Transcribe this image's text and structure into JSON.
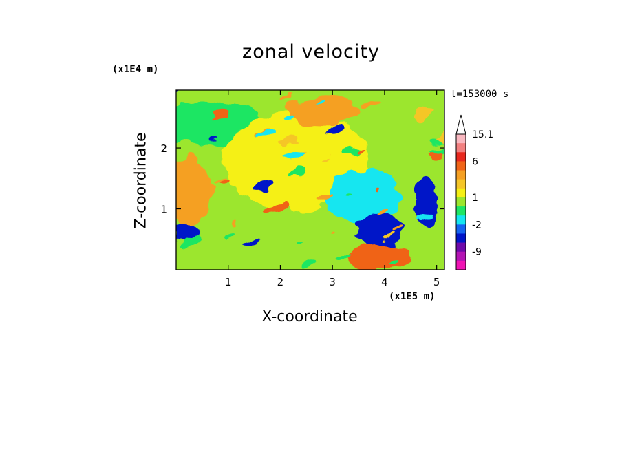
{
  "chart_data": {
    "type": "heatmap",
    "title": "zonal velocity",
    "xlabel": "X-coordinate",
    "ylabel": "Z-coordinate",
    "x_unit_label": "(x1E5 m)",
    "y_unit_label": "(x1E4 m)",
    "time_label": "t=153000 s",
    "xlim": [
      0,
      5.15
    ],
    "ylim": [
      0,
      2.95
    ],
    "x_ticks": [
      "1",
      "2",
      "3",
      "4",
      "5"
    ],
    "y_ticks": [
      "1",
      "2"
    ],
    "x_tick_values": [
      1,
      2,
      3,
      4,
      5
    ],
    "y_tick_values": [
      1,
      2
    ],
    "colorbar": {
      "labels": [
        "15.1",
        "6",
        "1",
        "-2",
        "-9"
      ],
      "label_values": [
        15.1,
        6,
        1,
        -2,
        -9
      ],
      "max_arrow": true,
      "levels": [
        {
          "color": "#f9b8c0"
        },
        {
          "color": "#f28080"
        },
        {
          "color": "#e8281e"
        },
        {
          "color": "#f06418"
        },
        {
          "color": "#f5a023"
        },
        {
          "color": "#f5c628"
        },
        {
          "color": "#f5f014"
        },
        {
          "color": "#9ce62d"
        },
        {
          "color": "#1ee664"
        },
        {
          "color": "#14e6f0"
        },
        {
          "color": "#1464f0"
        },
        {
          "color": "#0014c8"
        },
        {
          "color": "#6e0aaa"
        },
        {
          "color": "#b414b4"
        },
        {
          "color": "#f014b4"
        }
      ]
    },
    "features": [
      {
        "label": "background",
        "value": 0.5
      },
      {
        "label": "upper-left green band",
        "x": 0.6,
        "z": 2.4,
        "value": -1
      },
      {
        "label": "left orange shear",
        "x": 0.25,
        "z": 1.3,
        "value": 3.5
      },
      {
        "label": "central yellow",
        "x": 2.3,
        "z": 1.8,
        "value": 1.5
      },
      {
        "label": "upper orange",
        "x": 2.8,
        "z": 2.6,
        "value": 3
      },
      {
        "label": "right cyan region",
        "x": 3.6,
        "z": 1.2,
        "value": -2.5
      },
      {
        "label": "blue core",
        "x": 3.9,
        "z": 0.65,
        "value": -6
      },
      {
        "label": "bottom orange jet",
        "x": 3.9,
        "z": 0.2,
        "value": 4.5
      },
      {
        "label": "right blue",
        "x": 4.8,
        "z": 1.1,
        "value": -7
      },
      {
        "label": "left blue",
        "x": 0.2,
        "z": 0.6,
        "value": -6
      }
    ]
  }
}
